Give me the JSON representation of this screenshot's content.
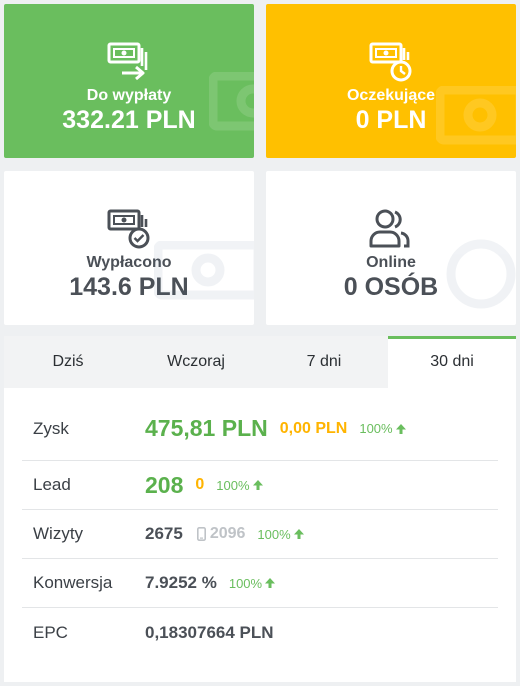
{
  "cards": {
    "payout": {
      "label": "Do wypłaty",
      "value": "332.21 PLN",
      "icon": "money-transfer-icon",
      "color": "#6abe5e"
    },
    "pending": {
      "label": "Oczekujące",
      "value": "0 PLN",
      "icon": "money-clock-icon",
      "color": "#ffc000"
    },
    "paid": {
      "label": "Wypłacono",
      "value": "143.6 PLN",
      "icon": "money-check-icon",
      "color": "#ffffff"
    },
    "online": {
      "label": "Online",
      "value": "0 OSÓB",
      "icon": "users-icon",
      "color": "#ffffff"
    }
  },
  "tabs": [
    {
      "label": "Dziś"
    },
    {
      "label": "Wczoraj"
    },
    {
      "label": "7 dni"
    },
    {
      "label": "30 dni",
      "active": true
    }
  ],
  "stats": {
    "profit": {
      "label": "Zysk",
      "value": "475,81 PLN",
      "secondary": "0,00 PLN",
      "percent": "100%"
    },
    "lead": {
      "label": "Lead",
      "value": "208",
      "secondary": "0",
      "percent": "100%"
    },
    "visits": {
      "label": "Wizyty",
      "value": "2675",
      "mobile": "2096",
      "percent": "100%"
    },
    "conversion": {
      "label": "Konwersja",
      "value": "7.9252 %",
      "percent": "100%"
    },
    "epc": {
      "label": "EPC",
      "value": "0,18307664 PLN"
    }
  },
  "colors": {
    "accent": "#6abe5e",
    "warning": "#ffb400",
    "text": "#4b5057"
  }
}
